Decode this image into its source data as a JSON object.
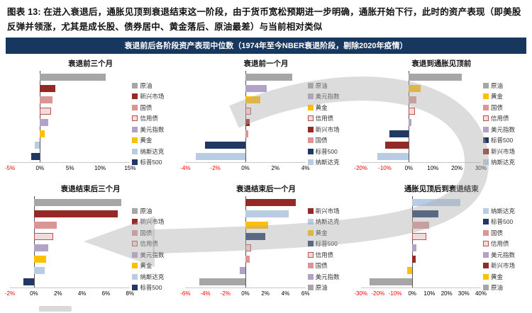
{
  "header": {
    "caption": "图表 13: 在进入衰退后，通胀见顶到衰退结束这一阶段，由于货币宽松预期进一步明确，通胀开始下行，此时的资产表现（即美股反弹并领涨，尤其是成长股、债券居中、黄金落后、原油最差）与当前相对类似",
    "banner": "衰退前后各阶段资产表现中位数（1974年至今NBER衰退阶段，剔除2020年疫情）"
  },
  "colors": {
    "banner_bg": "#17375E",
    "negative_tick": "#FF0000",
    "arrow_gray": "#ABABAB"
  },
  "assets": [
    {
      "id": "crude-oil",
      "label": "原油",
      "color": "#A6A6A6"
    },
    {
      "id": "emerging-markets",
      "label": "新兴市场",
      "color": "#942A25"
    },
    {
      "id": "treasury-bond",
      "label": "国债",
      "color": "#D99694"
    },
    {
      "id": "credit-bond",
      "label": "信用债",
      "color": "#F2DCDB",
      "border": "#C0504D"
    },
    {
      "id": "dollar-index",
      "label": "美元指数",
      "color": "#B3A2C7"
    },
    {
      "id": "gold",
      "label": "黄金",
      "color": "#FFC000"
    },
    {
      "id": "nasdaq",
      "label": "纳斯达克",
      "color": "#B8CCE4"
    },
    {
      "id": "sp500",
      "label": "标普500",
      "color": "#1F3864"
    }
  ],
  "chart_data": [
    {
      "type": "bar",
      "orientation": "horizontal",
      "id": "pre-recession-3m",
      "title": "衰退前三个月",
      "xlim": [
        -5,
        15
      ],
      "ticks": [
        {
          "value": -5,
          "label": "-5%"
        },
        {
          "value": 0,
          "label": "0%"
        },
        {
          "value": 5,
          "label": "5%"
        },
        {
          "value": 10,
          "label": "10%"
        },
        {
          "value": 15,
          "label": "15%"
        }
      ],
      "series": [
        {
          "asset": "crude-oil",
          "value": 11.0
        },
        {
          "asset": "emerging-markets",
          "value": 2.6
        },
        {
          "asset": "treasury-bond",
          "value": 2.1
        },
        {
          "asset": "credit-bond",
          "value": 1.9
        },
        {
          "asset": "dollar-index",
          "value": 1.4
        },
        {
          "asset": "gold",
          "value": 0.8
        },
        {
          "asset": "nasdaq",
          "value": -0.9
        },
        {
          "asset": "sp500",
          "value": -1.5
        }
      ]
    },
    {
      "type": "bar",
      "orientation": "horizontal",
      "id": "pre-recession-1m",
      "title": "衰退前一个月",
      "xlim": [
        -4,
        4
      ],
      "ticks": [
        {
          "value": -4,
          "label": "-4%"
        },
        {
          "value": -2,
          "label": "-2%"
        },
        {
          "value": 0,
          "label": "0%"
        },
        {
          "value": 2,
          "label": "2%"
        },
        {
          "value": 4,
          "label": "4%"
        }
      ],
      "series": [
        {
          "asset": "crude-oil",
          "value": 3.1
        },
        {
          "asset": "dollar-index",
          "value": 1.4
        },
        {
          "asset": "gold",
          "value": 1.0
        },
        {
          "asset": "credit-bond",
          "value": 0.4
        },
        {
          "asset": "emerging-markets",
          "value": 0.3
        },
        {
          "asset": "treasury-bond",
          "value": 0.2
        },
        {
          "asset": "sp500",
          "value": -2.7
        },
        {
          "asset": "nasdaq",
          "value": -3.3
        }
      ]
    },
    {
      "type": "bar",
      "orientation": "horizontal",
      "id": "recession-to-inflation-peak",
      "title": "衰退到通胀见顶前",
      "xlim": [
        -20,
        30
      ],
      "ticks": [
        {
          "value": -20,
          "label": "-20%"
        },
        {
          "value": -10,
          "label": "-10%"
        },
        {
          "value": 0,
          "label": "0%"
        },
        {
          "value": 10,
          "label": "10%"
        },
        {
          "value": 20,
          "label": "20%"
        },
        {
          "value": 30,
          "label": "30%"
        }
      ],
      "series": [
        {
          "asset": "crude-oil",
          "value": 22.0
        },
        {
          "asset": "gold",
          "value": 5.0
        },
        {
          "asset": "treasury-bond",
          "value": 3.0
        },
        {
          "asset": "credit-bond",
          "value": 2.5
        },
        {
          "asset": "dollar-index",
          "value": 1.0
        },
        {
          "asset": "sp500",
          "value": -8.0
        },
        {
          "asset": "emerging-markets",
          "value": -10.0
        },
        {
          "asset": "nasdaq",
          "value": -13.0
        }
      ]
    },
    {
      "type": "bar",
      "orientation": "horizontal",
      "id": "post-recession-end-3m",
      "title": "衰退结束后三个月",
      "xlim": [
        -2,
        8
      ],
      "ticks": [
        {
          "value": -2,
          "label": "-2%"
        },
        {
          "value": 0,
          "label": "0%"
        },
        {
          "value": 2,
          "label": "2%"
        },
        {
          "value": 4,
          "label": "4%"
        },
        {
          "value": 6,
          "label": "6%"
        },
        {
          "value": 8,
          "label": "8%"
        }
      ],
      "series": [
        {
          "asset": "crude-oil",
          "value": 7.3
        },
        {
          "asset": "emerging-markets",
          "value": 7.0
        },
        {
          "asset": "treasury-bond",
          "value": 1.9
        },
        {
          "asset": "credit-bond",
          "value": 1.6
        },
        {
          "asset": "dollar-index",
          "value": 1.2
        },
        {
          "asset": "gold",
          "value": 1.0
        },
        {
          "asset": "nasdaq",
          "value": 0.9
        },
        {
          "asset": "sp500",
          "value": -0.9
        }
      ]
    },
    {
      "type": "bar",
      "orientation": "horizontal",
      "id": "post-recession-end-1m",
      "title": "衰退结束后一个月",
      "xlim": [
        -6,
        6
      ],
      "ticks": [
        {
          "value": -6,
          "label": "-6%"
        },
        {
          "value": -4,
          "label": "-4%"
        },
        {
          "value": -2,
          "label": "-2%"
        },
        {
          "value": 0,
          "label": "0%"
        },
        {
          "value": 2,
          "label": "2%"
        },
        {
          "value": 4,
          "label": "4%"
        },
        {
          "value": 6,
          "label": "6%"
        }
      ],
      "series": [
        {
          "asset": "emerging-markets",
          "value": 5.0
        },
        {
          "asset": "nasdaq",
          "value": 4.3
        },
        {
          "asset": "gold",
          "value": 2.3
        },
        {
          "asset": "sp500",
          "value": 2.0
        },
        {
          "asset": "credit-bond",
          "value": 0.6
        },
        {
          "asset": "treasury-bond",
          "value": 0.4
        },
        {
          "asset": "dollar-index",
          "value": -0.6
        },
        {
          "asset": "crude-oil",
          "value": -4.6
        }
      ]
    },
    {
      "type": "bar",
      "orientation": "horizontal",
      "id": "inflation-peak-to-recession-end",
      "title": "通胀见顶后到衰退结束",
      "xlim": [
        -30,
        40
      ],
      "ticks": [
        {
          "value": -30,
          "label": "-30%"
        },
        {
          "value": -20,
          "label": "-20%"
        },
        {
          "value": -10,
          "label": "-10%"
        },
        {
          "value": 0,
          "label": "0%"
        },
        {
          "value": 10,
          "label": "10%"
        },
        {
          "value": 20,
          "label": "20%"
        },
        {
          "value": 30,
          "label": "30%"
        },
        {
          "value": 40,
          "label": "40%"
        }
      ],
      "series": [
        {
          "asset": "nasdaq",
          "value": 28.0
        },
        {
          "asset": "sp500",
          "value": 15.0
        },
        {
          "asset": "treasury-bond",
          "value": 10.0
        },
        {
          "asset": "credit-bond",
          "value": 8.0
        },
        {
          "asset": "dollar-index",
          "value": 2.5
        },
        {
          "asset": "emerging-markets",
          "value": 2.0
        },
        {
          "asset": "gold",
          "value": -3.0
        },
        {
          "asset": "crude-oil",
          "value": -25.0
        }
      ]
    }
  ]
}
